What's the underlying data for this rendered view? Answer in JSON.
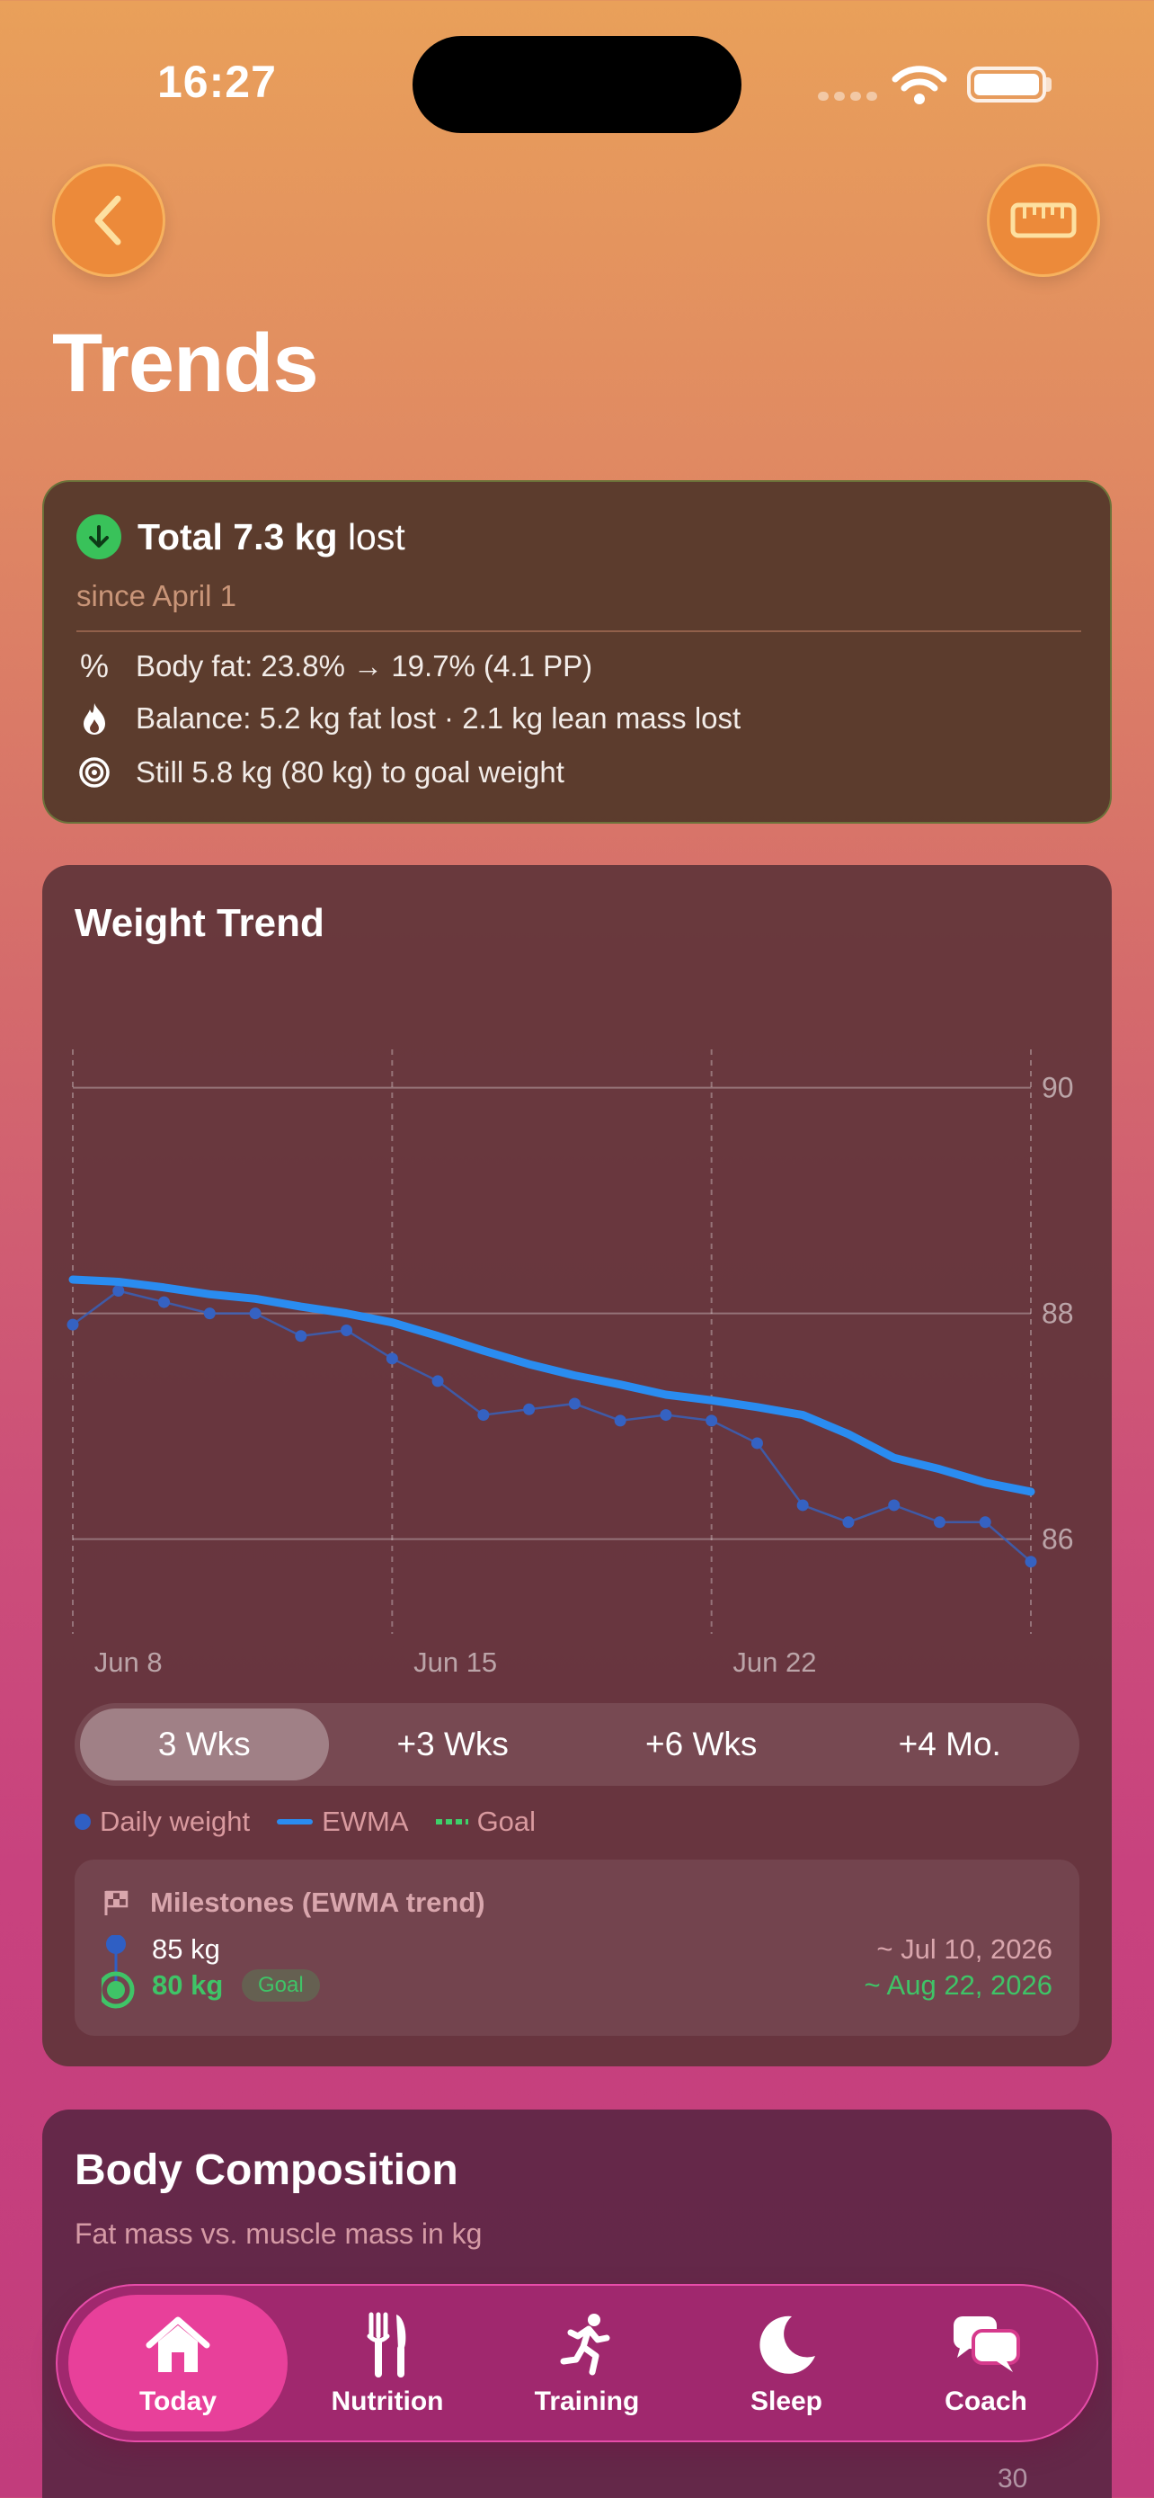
{
  "status": {
    "time": "16:27"
  },
  "header": {
    "title": "Trends",
    "back_icon": "chevron-left-icon",
    "right_icon": "ruler-icon"
  },
  "summary": {
    "title_bold": "Total 7.3 kg",
    "title_rest": "lost",
    "since": "since April 1",
    "rows": [
      {
        "icon": "percent-icon",
        "text": "Body fat: 23.8% → 19.7%  (4.1 PP)"
      },
      {
        "icon": "flame-icon",
        "text": "Balance: 5.2 kg fat lost · 2.1 kg lean mass lost"
      },
      {
        "icon": "target-icon",
        "text": "Still 5.8 kg (80 kg) to goal weight"
      }
    ]
  },
  "weight_trend": {
    "title": "Weight Trend",
    "ranges": [
      "3 Wks",
      "+3 Wks",
      "+6 Wks",
      "+4 Mo."
    ],
    "selected_range": "3 Wks",
    "legend": [
      "Daily weight",
      "EWMA",
      "Goal"
    ],
    "milestones": {
      "title": "Milestones (EWMA trend)",
      "items": [
        {
          "value": "85 kg",
          "date": "~ Jul 10, 2026",
          "goal": false
        },
        {
          "value": "80 kg",
          "badge": "Goal",
          "date": "~ Aug 22, 2026",
          "goal": true
        }
      ]
    }
  },
  "chart_data": {
    "type": "line",
    "title": "Weight Trend",
    "x_tick_labels": [
      "Jun 8",
      "Jun 15",
      "Jun 22"
    ],
    "y_ticks": [
      90,
      88,
      86
    ],
    "ylim": [
      85.2,
      90.3
    ],
    "x": [
      "Jun 7",
      "Jun 8",
      "Jun 9",
      "Jun 10",
      "Jun 11",
      "Jun 12",
      "Jun 13",
      "Jun 14",
      "Jun 15",
      "Jun 16",
      "Jun 17",
      "Jun 18",
      "Jun 19",
      "Jun 20",
      "Jun 21",
      "Jun 22",
      "Jun 23",
      "Jun 24",
      "Jun 25",
      "Jun 26",
      "Jun 27",
      "Jun 28"
    ],
    "series": [
      {
        "name": "Daily weight",
        "values": [
          87.9,
          88.2,
          88.1,
          88.0,
          88.0,
          87.8,
          87.85,
          87.6,
          87.4,
          87.1,
          87.15,
          87.2,
          87.05,
          87.1,
          87.05,
          86.85,
          86.3,
          86.15,
          86.3,
          86.15,
          86.15,
          85.8
        ]
      },
      {
        "name": "EWMA",
        "values": [
          88.3,
          88.28,
          88.23,
          88.17,
          88.13,
          88.06,
          88.0,
          87.92,
          87.8,
          87.67,
          87.55,
          87.45,
          87.37,
          87.28,
          87.23,
          87.17,
          87.1,
          86.93,
          86.72,
          86.62,
          86.5,
          86.42
        ]
      }
    ],
    "grid": true
  },
  "body_composition": {
    "title": "Body Composition",
    "subtitle": "Fat mass vs. muscle mass in kg",
    "axis_label": "30"
  },
  "tabbar": {
    "tabs": [
      {
        "label": "Today",
        "icon": "house-icon",
        "active": true
      },
      {
        "label": "Nutrition",
        "icon": "fork-knife-icon",
        "active": false
      },
      {
        "label": "Training",
        "icon": "running-figure-icon",
        "active": false
      },
      {
        "label": "Sleep",
        "icon": "moon-icon",
        "active": false
      },
      {
        "label": "Coach",
        "icon": "chat-bubbles-icon",
        "active": false
      }
    ]
  }
}
